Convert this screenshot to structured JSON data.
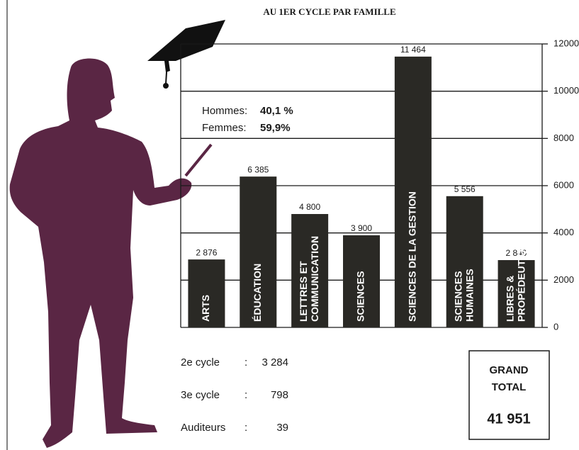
{
  "chart_data": {
    "type": "bar",
    "title": "AU 1ER CYCLE PAR FAMILLE",
    "categories": [
      "ARTS",
      "ÉDUCATION",
      "LETTRES ET COMMUNICATION",
      "SCIENCES",
      "SCIENCES DE LA GESTION",
      "SCIENCES HUMAINES",
      "LIBRES & PROPÉDEUTIQUE"
    ],
    "values": [
      2876,
      6385,
      4800,
      3900,
      11464,
      5556,
      2849
    ],
    "value_labels": [
      "2 876",
      "6 385",
      "4 800",
      "3 900",
      "11 464",
      "5 556",
      "2 849"
    ],
    "color": "#2a2925",
    "ylim": [
      0,
      12000
    ],
    "yticks": [
      0,
      2000,
      4000,
      6000,
      8000,
      10000,
      12000
    ],
    "grid": true,
    "annotations": [
      [
        "Hommes:",
        "40,1 %"
      ],
      [
        "Femmes:",
        "59,9%"
      ]
    ]
  },
  "other_cycles": [
    [
      "2e cycle",
      ":",
      "3 284"
    ],
    [
      "3e cycle",
      ":",
      "798"
    ],
    [
      "Auditeurs",
      ":",
      "39"
    ]
  ],
  "grand_total": {
    "label": "GRAND TOTAL",
    "value": "41 951"
  }
}
